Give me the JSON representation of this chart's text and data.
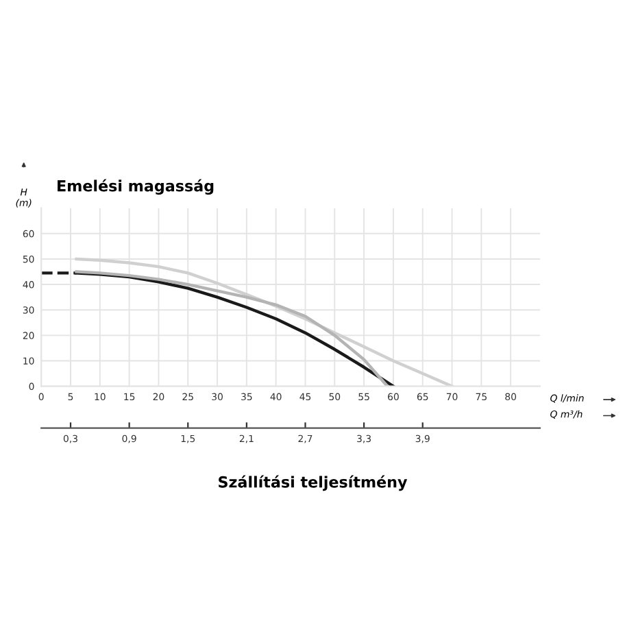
{
  "chart_data": {
    "type": "line",
    "title": "Emelési magasság",
    "ylabel": "H (m)",
    "xlabel": "Q l/min",
    "x2label": "Q m³/h",
    "annotations": [
      "Szállítási teljesítmény"
    ],
    "series": [
      {
        "color": "#1a1a1a",
        "line_style": "dashed",
        "x": [
          0,
          6
        ],
        "values": [
          44.5,
          44.5
        ]
      },
      {
        "color": "#1a1a1a",
        "x": [
          6,
          10,
          15,
          20,
          25,
          30,
          35,
          40,
          45,
          50,
          55,
          60
        ],
        "values": [
          44.5,
          44,
          43,
          41,
          38.5,
          35,
          31,
          26.5,
          21,
          14.5,
          7.5,
          0
        ]
      },
      {
        "color": "#d0d0d0",
        "x": [
          6,
          10,
          15,
          20,
          25,
          30,
          35,
          40,
          45,
          50,
          55,
          60,
          65,
          70
        ],
        "values": [
          50,
          49.5,
          48.5,
          47,
          44.5,
          40.5,
          36,
          31.5,
          26.5,
          21,
          15.5,
          10,
          5,
          0
        ]
      },
      {
        "color": "#b4b4b4",
        "x": [
          6,
          10,
          15,
          20,
          25,
          30,
          35,
          40,
          45,
          50,
          55,
          59
        ],
        "values": [
          45,
          44.5,
          43.5,
          42,
          40,
          37.5,
          35,
          32,
          27.5,
          20,
          10.5,
          0
        ]
      }
    ],
    "xlim": [
      0,
      85
    ],
    "xticks": [
      0,
      5,
      10,
      15,
      20,
      25,
      30,
      35,
      40,
      45,
      50,
      55,
      60,
      65,
      70,
      75,
      80
    ],
    "ylim": [
      0,
      70
    ],
    "yticks": [
      0,
      10,
      20,
      30,
      40,
      50,
      60
    ],
    "x2lim": [
      0,
      5.1
    ],
    "x2ticks": [
      {
        "value": 0.3,
        "label": "0,3"
      },
      {
        "value": 0.9,
        "label": "0,9"
      },
      {
        "value": 1.5,
        "label": "1,5"
      },
      {
        "value": 2.1,
        "label": "2,1"
      },
      {
        "value": 2.7,
        "label": "2,7"
      },
      {
        "value": 3.3,
        "label": "3,3"
      },
      {
        "value": 3.9,
        "label": "3,9"
      }
    ],
    "grid": true,
    "marker": "none",
    "line_style": "solid"
  }
}
